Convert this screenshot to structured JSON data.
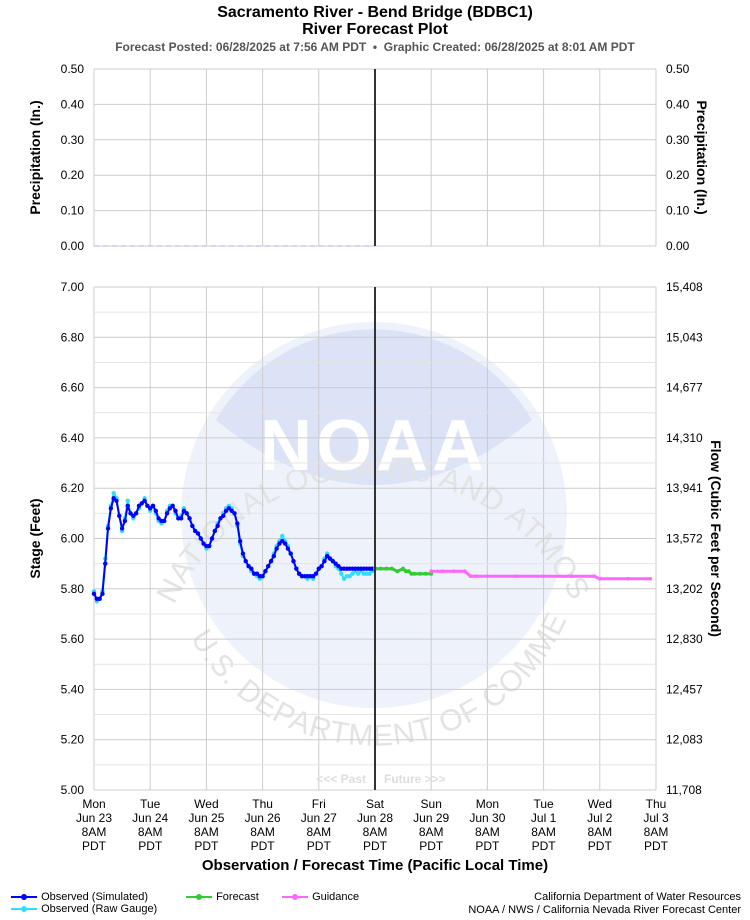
{
  "titles": {
    "main": "Sacramento River - Bend Bridge (BDBC1)",
    "sub": "River Forecast Plot",
    "posted_label": "Forecast Posted: 06/28/2025 at 7:56 AM PDT",
    "separator": "•",
    "created_label": "Graphic Created: 06/28/2025 at 8:01 AM PDT"
  },
  "watermark": {
    "arc_top": "NATIONAL OCEANIC AND ATMOSPHERIC ADMINISTRATION",
    "arc_bottom": "U.S. DEPARTMENT OF COMMERCE",
    "center": "NOAA"
  },
  "colors": {
    "observed_simulated": "#0000ff",
    "observed_raw": "#33ddff",
    "forecast": "#33cc33",
    "guidance": "#ff66ff",
    "now_line": "#333333",
    "grid": "#cccccc",
    "precip": "#aaaaff"
  },
  "legend": {
    "observed_simulated": "Observed (Simulated)",
    "observed_raw": "Observed (Raw Gauge)",
    "forecast": "Forecast",
    "guidance": "Guidance"
  },
  "credits": {
    "line1": "California Department of Water Resources",
    "line2": "NOAA / NWS / California Nevada River Forecast Center"
  },
  "chart_data": [
    {
      "type": "line",
      "panel": "precipitation",
      "ylabel_left": "Precipitation (In.)",
      "ylabel_right": "Precipitation (In.)",
      "ylim": [
        0,
        0.5
      ],
      "yticks": [
        "0.00",
        "0.10",
        "0.20",
        "0.30",
        "0.40",
        "0.50"
      ],
      "grid": true,
      "series": [
        {
          "name": "",
          "x_range": [
            "Jun 23 8AM",
            "Jun 28 8AM"
          ],
          "values": [
            0,
            0
          ]
        }
      ]
    },
    {
      "type": "line",
      "panel": "stage",
      "xlabel": "Observation / Forecast Time (Pacific Local Time)",
      "ylabel_left": "Stage (Feet)",
      "ylabel_right": "Flow (Cubic Feet per Second)",
      "ylim": [
        5.0,
        7.0
      ],
      "yticks": [
        "5.00",
        "5.20",
        "5.40",
        "5.60",
        "5.80",
        "6.00",
        "6.20",
        "6.40",
        "6.60",
        "6.80",
        "7.00"
      ],
      "yticks_right": [
        "11,708",
        "12,083",
        "12,457",
        "12,830",
        "13,202",
        "13,572",
        "13,941",
        "14,310",
        "14,677",
        "15,043",
        "15,408"
      ],
      "grid": true,
      "xticks": [
        [
          "Mon",
          "Jun 23",
          "8AM",
          "PDT"
        ],
        [
          "Tue",
          "Jun 24",
          "8AM",
          "PDT"
        ],
        [
          "Wed",
          "Jun 25",
          "8AM",
          "PDT"
        ],
        [
          "Thu",
          "Jun 26",
          "8AM",
          "PDT"
        ],
        [
          "Fri",
          "Jun 27",
          "8AM",
          "PDT"
        ],
        [
          "Sat",
          "Jun 28",
          "8AM",
          "PDT"
        ],
        [
          "Sun",
          "Jun 29",
          "8AM",
          "PDT"
        ],
        [
          "Mon",
          "Jun 30",
          "8AM",
          "PDT"
        ],
        [
          "Tue",
          "Jul 1",
          "8AM",
          "PDT"
        ],
        [
          "Wed",
          "Jul 2",
          "8AM",
          "PDT"
        ],
        [
          "Thu",
          "Jul 3",
          "8AM",
          "PDT"
        ]
      ],
      "x_unit": "days after Jun 23 8AM PDT",
      "past_label": "<<< Past",
      "future_label": "Future >>>",
      "now_x": 5.0,
      "series": [
        {
          "name": "Observed (Raw Gauge)",
          "x": [
            0,
            0.05,
            0.1,
            0.15,
            0.2,
            0.25,
            0.3,
            0.35,
            0.4,
            0.45,
            0.5,
            0.55,
            0.6,
            0.65,
            0.7,
            0.75,
            0.8,
            0.85,
            0.9,
            0.95,
            1.0,
            1.05,
            1.1,
            1.15,
            1.2,
            1.25,
            1.3,
            1.35,
            1.4,
            1.45,
            1.5,
            1.55,
            1.6,
            1.65,
            1.7,
            1.75,
            1.8,
            1.85,
            1.9,
            1.95,
            2.0,
            2.05,
            2.1,
            2.15,
            2.2,
            2.25,
            2.3,
            2.35,
            2.4,
            2.45,
            2.5,
            2.55,
            2.6,
            2.65,
            2.7,
            2.75,
            2.8,
            2.85,
            2.9,
            2.95,
            3.0,
            3.05,
            3.1,
            3.15,
            3.2,
            3.25,
            3.3,
            3.35,
            3.4,
            3.45,
            3.5,
            3.55,
            3.6,
            3.65,
            3.7,
            3.75,
            3.8,
            3.85,
            3.9,
            3.95,
            4.0,
            4.05,
            4.1,
            4.15,
            4.2,
            4.25,
            4.3,
            4.35,
            4.4,
            4.45,
            4.5,
            4.55,
            4.6,
            4.65,
            4.7,
            4.75,
            4.8,
            4.85,
            4.9,
            4.95
          ],
          "values": [
            5.79,
            5.75,
            5.76,
            5.79,
            5.92,
            6.05,
            6.13,
            6.18,
            6.16,
            6.09,
            6.03,
            6.08,
            6.15,
            6.1,
            6.08,
            6.1,
            6.12,
            6.14,
            6.16,
            6.13,
            6.11,
            6.13,
            6.1,
            6.07,
            6.06,
            6.07,
            6.11,
            6.13,
            6.13,
            6.1,
            6.08,
            6.09,
            6.12,
            6.1,
            6.08,
            6.05,
            6.03,
            6.02,
            6.0,
            5.98,
            5.96,
            5.97,
            6.0,
            6.03,
            6.06,
            6.08,
            6.1,
            6.12,
            6.13,
            6.12,
            6.1,
            6.05,
            5.98,
            5.93,
            5.91,
            5.89,
            5.87,
            5.86,
            5.85,
            5.84,
            5.85,
            5.87,
            5.89,
            5.91,
            5.94,
            5.97,
            5.99,
            6.01,
            5.99,
            5.97,
            5.94,
            5.91,
            5.88,
            5.86,
            5.85,
            5.85,
            5.84,
            5.85,
            5.84,
            5.86,
            5.88,
            5.89,
            5.92,
            5.94,
            5.92,
            5.91,
            5.89,
            5.88,
            5.86,
            5.84,
            5.85,
            5.85,
            5.86,
            5.87,
            5.86,
            5.87,
            5.86,
            5.86,
            5.86,
            5.87
          ]
        },
        {
          "name": "Observed (Simulated)",
          "x": [
            0,
            0.05,
            0.1,
            0.15,
            0.2,
            0.25,
            0.3,
            0.35,
            0.4,
            0.45,
            0.5,
            0.55,
            0.6,
            0.65,
            0.7,
            0.75,
            0.8,
            0.85,
            0.9,
            0.95,
            1.0,
            1.05,
            1.1,
            1.15,
            1.2,
            1.25,
            1.3,
            1.35,
            1.4,
            1.45,
            1.5,
            1.55,
            1.6,
            1.65,
            1.7,
            1.75,
            1.8,
            1.85,
            1.9,
            1.95,
            2.0,
            2.05,
            2.1,
            2.15,
            2.2,
            2.25,
            2.3,
            2.35,
            2.4,
            2.45,
            2.5,
            2.55,
            2.6,
            2.65,
            2.7,
            2.75,
            2.8,
            2.85,
            2.9,
            2.95,
            3.0,
            3.05,
            3.1,
            3.15,
            3.2,
            3.25,
            3.3,
            3.35,
            3.4,
            3.45,
            3.5,
            3.55,
            3.6,
            3.65,
            3.7,
            3.75,
            3.8,
            3.85,
            3.9,
            3.95,
            4.0,
            4.05,
            4.1,
            4.15,
            4.2,
            4.25,
            4.3,
            4.35,
            4.4,
            4.45,
            4.5,
            4.55,
            4.6,
            4.65,
            4.7,
            4.75,
            4.8,
            4.85,
            4.9,
            4.95,
            5.0
          ],
          "values": [
            5.78,
            5.76,
            5.76,
            5.78,
            5.9,
            6.04,
            6.12,
            6.16,
            6.15,
            6.09,
            6.04,
            6.07,
            6.13,
            6.1,
            6.09,
            6.1,
            6.13,
            6.14,
            6.15,
            6.13,
            6.12,
            6.13,
            6.11,
            6.08,
            6.07,
            6.07,
            6.1,
            6.12,
            6.13,
            6.11,
            6.08,
            6.08,
            6.11,
            6.1,
            6.08,
            6.05,
            6.03,
            6.02,
            6.0,
            5.98,
            5.97,
            5.97,
            6.0,
            6.03,
            6.05,
            6.08,
            6.09,
            6.11,
            6.12,
            6.11,
            6.1,
            6.06,
            5.99,
            5.94,
            5.91,
            5.89,
            5.88,
            5.86,
            5.86,
            5.85,
            5.85,
            5.87,
            5.89,
            5.91,
            5.93,
            5.96,
            5.98,
            5.99,
            5.98,
            5.96,
            5.94,
            5.91,
            5.88,
            5.86,
            5.85,
            5.85,
            5.85,
            5.85,
            5.85,
            5.86,
            5.88,
            5.89,
            5.91,
            5.93,
            5.92,
            5.91,
            5.9,
            5.89,
            5.88,
            5.88,
            5.88,
            5.88,
            5.88,
            5.88,
            5.88,
            5.88,
            5.88,
            5.88,
            5.88,
            5.88,
            5.88
          ]
        },
        {
          "name": "Forecast",
          "x": [
            5.0,
            5.1,
            5.2,
            5.3,
            5.4,
            5.5,
            5.55,
            5.6,
            5.65,
            5.7,
            5.8,
            5.9,
            6.0
          ],
          "values": [
            5.88,
            5.88,
            5.88,
            5.88,
            5.87,
            5.88,
            5.87,
            5.87,
            5.86,
            5.86,
            5.86,
            5.86,
            5.86
          ]
        },
        {
          "name": "Guidance",
          "x": [
            6.0,
            6.2,
            6.4,
            6.6,
            6.7,
            6.8,
            7.0,
            7.5,
            8.0,
            8.5,
            8.9,
            9.0,
            9.5,
            9.9
          ],
          "values": [
            5.87,
            5.87,
            5.87,
            5.87,
            5.85,
            5.85,
            5.85,
            5.85,
            5.85,
            5.85,
            5.85,
            5.84,
            5.84,
            5.84
          ]
        }
      ]
    }
  ]
}
